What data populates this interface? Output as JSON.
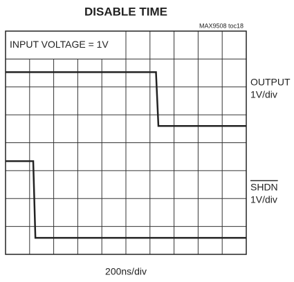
{
  "chart_data": {
    "type": "line",
    "title": "DISABLE TIME",
    "subtitle": "MAX9508 toc18",
    "annotation": "INPUT VOLTAGE = 1V",
    "x_label": "200ns/div",
    "xlim": [
      0,
      10
    ],
    "ylim": [
      0,
      8
    ],
    "xticks": [
      0,
      1,
      2,
      3,
      4,
      5,
      6,
      7,
      8,
      9,
      10
    ],
    "yticks": [
      0,
      1,
      2,
      3,
      4,
      5,
      6,
      7,
      8
    ],
    "grid": true,
    "series": [
      {
        "name": "OUTPUT",
        "scale": "1V/div",
        "color": "#222222",
        "x": [
          0,
          6.25,
          6.35,
          10
        ],
        "values": [
          6.53,
          6.53,
          4.6,
          4.6
        ]
      },
      {
        "name": "SHDN",
        "scale": "1V/div",
        "color": "#222222",
        "x": [
          0,
          1.15,
          1.24,
          10
        ],
        "values": [
          3.34,
          3.34,
          0.59,
          0.59
        ]
      }
    ]
  }
}
